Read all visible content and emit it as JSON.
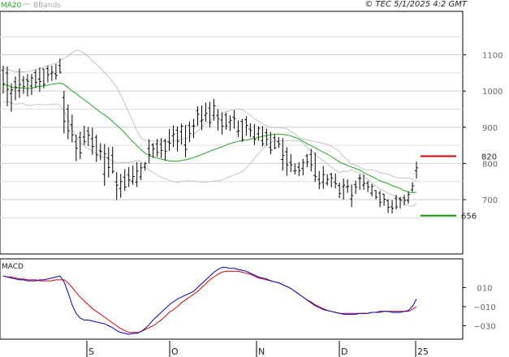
{
  "header": {
    "copyright": "© TEC 5/1/2025 4:2 GMT"
  },
  "legend": [
    {
      "label": "MA20",
      "color": "#22aa22"
    },
    {
      "label": "BBands",
      "color": "#bbbbbb"
    }
  ],
  "levels": [
    {
      "label": "820",
      "value": 820,
      "color": "#cc0000"
    },
    {
      "label": "656",
      "value": 656,
      "color": "#009900"
    }
  ],
  "chart_data": [
    {
      "type": "ohlc",
      "ylim": [
        550,
        1220
      ],
      "yticks": [
        700,
        800,
        900,
        1000,
        1100
      ],
      "ytick_labels": [
        "700",
        "800",
        "900",
        "1000",
        "1100"
      ],
      "xtick_labels": [
        "S",
        "O",
        "N",
        "D",
        "25"
      ],
      "ohlc": [
        [
          1057,
          1070,
          993,
          1020
        ],
        [
          1050,
          1068,
          958,
          1005
        ],
        [
          993,
          1021,
          943,
          1003
        ],
        [
          1026,
          1040,
          975,
          1010
        ],
        [
          1001,
          1062,
          981,
          1018
        ],
        [
          1030,
          1042,
          992,
          1013
        ],
        [
          1031,
          1047,
          985,
          1027
        ],
        [
          1014,
          1047,
          989,
          1036
        ],
        [
          1051,
          1059,
          1008,
          1024
        ],
        [
          1033,
          1065,
          998,
          1026
        ],
        [
          1061,
          1062,
          1008,
          1019
        ],
        [
          1062,
          1070,
          1024,
          1045
        ],
        [
          1048,
          1070,
          1028,
          1052
        ],
        [
          1048,
          1075,
          1031,
          1043
        ],
        [
          1071,
          1090,
          1048,
          1052
        ],
        [
          982,
          1001,
          883,
          916
        ],
        [
          950,
          963,
          867,
          890
        ],
        [
          907,
          935,
          858,
          879
        ],
        [
          860,
          880,
          806,
          842
        ],
        [
          872,
          888,
          812,
          829
        ],
        [
          873,
          904,
          851,
          860
        ],
        [
          890,
          901,
          848,
          878
        ],
        [
          868,
          899,
          824,
          847
        ],
        [
          872,
          879,
          804,
          824
        ],
        [
          835,
          856,
          809,
          833
        ],
        [
          770,
          854,
          738,
          827
        ],
        [
          815,
          845,
          761,
          789
        ],
        [
          822,
          846,
          772,
          778
        ],
        [
          749,
          776,
          699,
          740
        ],
        [
          731,
          771,
          705,
          750
        ],
        [
          762,
          784,
          724,
          735
        ],
        [
          768,
          790,
          735,
          754
        ],
        [
          751,
          794,
          741,
          764
        ],
        [
          748,
          804,
          735,
          779
        ],
        [
          763,
          802,
          754,
          788
        ],
        [
          790,
          804,
          780,
          800
        ],
        [
          841,
          867,
          800,
          824
        ],
        [
          851,
          856,
          815,
          840
        ],
        [
          854,
          868,
          818,
          831
        ],
        [
          853,
          870,
          815,
          836
        ],
        [
          863,
          868,
          808,
          834
        ],
        [
          859,
          895,
          834,
          856
        ],
        [
          876,
          905,
          845,
          881
        ],
        [
          892,
          902,
          833,
          861
        ],
        [
          888,
          910,
          852,
          903
        ],
        [
          851,
          906,
          817,
          839
        ],
        [
          905,
          916,
          859,
          883
        ],
        [
          903,
          923,
          870,
          904
        ],
        [
          946,
          958,
          904,
          936
        ],
        [
          917,
          960,
          892,
          920
        ],
        [
          933,
          968,
          915,
          938
        ],
        [
          953,
          970,
          900,
          913
        ],
        [
          932,
          978,
          918,
          959
        ],
        [
          933,
          950,
          891,
          924
        ],
        [
          920,
          941,
          880,
          903
        ],
        [
          934,
          940,
          893,
          904
        ],
        [
          914,
          933,
          890,
          919
        ],
        [
          928,
          947,
          896,
          924
        ],
        [
          888,
          919,
          873,
          890
        ],
        [
          916,
          923,
          860,
          866
        ],
        [
          921,
          930,
          877,
          905
        ],
        [
          895,
          911,
          873,
          891
        ],
        [
          873,
          909,
          851,
          866
        ],
        [
          882,
          903,
          863,
          897
        ],
        [
          863,
          903,
          847,
          854
        ],
        [
          885,
          896,
          849,
          867
        ],
        [
          844,
          887,
          825,
          837
        ],
        [
          871,
          880,
          839,
          843
        ],
        [
          860,
          873,
          843,
          854
        ],
        [
          811,
          870,
          780,
          822
        ],
        [
          832,
          845,
          766,
          796
        ],
        [
          803,
          826,
          776,
          796
        ],
        [
          779,
          800,
          770,
          780
        ],
        [
          790,
          803,
          765,
          780
        ],
        [
          786,
          813,
          767,
          803
        ],
        [
          821,
          826,
          790,
          804
        ],
        [
          825,
          840,
          778,
          796
        ],
        [
          767,
          830,
          749,
          764
        ],
        [
          756,
          779,
          729,
          744
        ],
        [
          748,
          793,
          730,
          769
        ],
        [
          745,
          770,
          739,
          756
        ],
        [
          770,
          774,
          734,
          760
        ],
        [
          748,
          772,
          731,
          744
        ],
        [
          739,
          747,
          704,
          717
        ],
        [
          736,
          758,
          700,
          740
        ],
        [
          735,
          756,
          719,
          737
        ],
        [
          702,
          742,
          680,
          711
        ],
        [
          741,
          752,
          716,
          735
        ],
        [
          759,
          770,
          727,
          759
        ],
        [
          740,
          769,
          727,
          745
        ],
        [
          745,
          752,
          721,
          735
        ],
        [
          718,
          743,
          709,
          737
        ],
        [
          725,
          726,
          701,
          707
        ],
        [
          718,
          724,
          679,
          693
        ],
        [
          715,
          716,
          683,
          701
        ],
        [
          698,
          701,
          663,
          679
        ],
        [
          680,
          699,
          662,
          676
        ],
        [
          704,
          713,
          673,
          680
        ],
        [
          702,
          708,
          676,
          699
        ],
        [
          705,
          713,
          684,
          698
        ],
        [
          698,
          723,
          689,
          714
        ],
        [
          727,
          748,
          721,
          738
        ],
        [
          780,
          805,
          758,
          788
        ]
      ],
      "series": [
        {
          "name": "MA20",
          "values": [
            1017,
            1016,
            1011,
            1009,
            1009,
            1009,
            1007,
            1008,
            1011,
            1013,
            1014,
            1016,
            1019,
            1020,
            1022,
            1018,
            1010,
            1000,
            993,
            984,
            976,
            968,
            959,
            950,
            941,
            934,
            926,
            916,
            906,
            896,
            884,
            872,
            860,
            849,
            838,
            828,
            822,
            818,
            815,
            812,
            809,
            807,
            806,
            806,
            808,
            810,
            813,
            816,
            820,
            825,
            829,
            834,
            838,
            842,
            846,
            851,
            855,
            858,
            861,
            863,
            864,
            867,
            869,
            872,
            875,
            877,
            879,
            881,
            881,
            880,
            879,
            876,
            872,
            867,
            861,
            854,
            849,
            843,
            837,
            831,
            826,
            819,
            811,
            804,
            799,
            794,
            790,
            786,
            782,
            775,
            769,
            764,
            758,
            752,
            748,
            744,
            739,
            735,
            731,
            725,
            721,
            719,
            721
          ]
        },
        {
          "name": "Upper",
          "values": [
            1065,
            1060,
            1056,
            1054,
            1053,
            1053,
            1054,
            1056,
            1059,
            1062,
            1066,
            1070,
            1074,
            1076,
            1084,
            1090,
            1097,
            1105,
            1113,
            1110,
            1104,
            1095,
            1084,
            1074,
            1063,
            1051,
            1039,
            1026,
            1011,
            989,
            965,
            941,
            915,
            890,
            870,
            864,
            862,
            862,
            862,
            862,
            860,
            861,
            862,
            864,
            866,
            868,
            874,
            881,
            890,
            901,
            910,
            918,
            925,
            932,
            938,
            943,
            946,
            948,
            950,
            948,
            941,
            934,
            924,
            917,
            910,
            904,
            900,
            899,
            899,
            898,
            896,
            889,
            881,
            872,
            866,
            865,
            863,
            860,
            858,
            855,
            853,
            848,
            840,
            833,
            819,
            810,
            798,
            795,
            789,
            784,
            782,
            783,
            779,
            775,
            772,
            770,
            765,
            761,
            760,
            760,
            759,
            757,
            752
          ]
        },
        {
          "name": "Lower",
          "values": [
            969,
            972,
            966,
            964,
            965,
            965,
            960,
            960,
            963,
            964,
            962,
            962,
            964,
            964,
            960,
            946,
            923,
            895,
            873,
            858,
            848,
            841,
            834,
            826,
            819,
            817,
            813,
            806,
            801,
            803,
            803,
            803,
            805,
            808,
            806,
            792,
            782,
            774,
            768,
            762,
            758,
            753,
            750,
            748,
            750,
            752,
            752,
            751,
            750,
            749,
            748,
            750,
            751,
            752,
            754,
            759,
            764,
            768,
            772,
            778,
            787,
            800,
            814,
            827,
            840,
            850,
            858,
            863,
            863,
            862,
            862,
            863,
            863,
            862,
            856,
            843,
            835,
            826,
            816,
            807,
            799,
            790,
            782,
            775,
            779,
            778,
            782,
            777,
            775,
            766,
            756,
            745,
            737,
            729,
            724,
            718,
            713,
            709,
            702,
            690,
            683,
            681,
            690
          ]
        }
      ]
    },
    {
      "type": "line",
      "title": "MACD",
      "ylim": [
        -44,
        40
      ],
      "yticks": [
        10,
        -10,
        -30
      ],
      "ytick_labels": [
        "010",
        "−010",
        "−030"
      ],
      "series": [
        {
          "name": "MACD",
          "values": [
            22,
            21,
            20,
            19,
            18,
            18,
            17,
            17,
            17,
            18,
            18,
            19,
            20,
            21,
            22,
            16,
            5,
            -8,
            -17,
            -22,
            -24,
            -24,
            -25,
            -26,
            -27,
            -28,
            -30,
            -32,
            -35,
            -37,
            -38,
            -39,
            -38,
            -38,
            -36,
            -33,
            -29,
            -24,
            -20,
            -16,
            -12,
            -8,
            -5,
            -2,
            0,
            2,
            4,
            6,
            10,
            14,
            18,
            22,
            26,
            29,
            31,
            31,
            30,
            30,
            29,
            28,
            27,
            25,
            23,
            21,
            20,
            19,
            17,
            16,
            15,
            13,
            11,
            9,
            6,
            3,
            0,
            -3,
            -6,
            -9,
            -11,
            -13,
            -14,
            -15,
            -16,
            -17,
            -18,
            -18,
            -18,
            -18,
            -17,
            -17,
            -17,
            -16,
            -16,
            -15,
            -15,
            -15,
            -16,
            -16,
            -16,
            -15,
            -14,
            -10,
            -2
          ]
        },
        {
          "name": "Signal",
          "values": [
            22,
            21,
            21,
            20,
            19,
            19,
            18,
            18,
            18,
            17,
            17,
            17,
            17,
            18,
            18,
            18,
            15,
            10,
            5,
            0,
            -4,
            -8,
            -12,
            -15,
            -18,
            -21,
            -24,
            -27,
            -30,
            -33,
            -35,
            -37,
            -37,
            -37,
            -36,
            -34,
            -32,
            -30,
            -27,
            -24,
            -20,
            -16,
            -13,
            -10,
            -6,
            -3,
            0,
            3,
            6,
            10,
            14,
            18,
            21,
            24,
            26,
            27,
            27,
            27,
            27,
            26,
            25,
            24,
            22,
            20,
            19,
            18,
            17,
            16,
            15,
            13,
            11,
            9,
            6,
            3,
            0,
            -3,
            -5,
            -8,
            -10,
            -12,
            -14,
            -15,
            -16,
            -17,
            -17,
            -17,
            -17,
            -17,
            -17,
            -17,
            -17,
            -16,
            -16,
            -16,
            -15,
            -15,
            -15,
            -15,
            -15,
            -15,
            -15,
            -13,
            -10
          ]
        }
      ]
    }
  ]
}
